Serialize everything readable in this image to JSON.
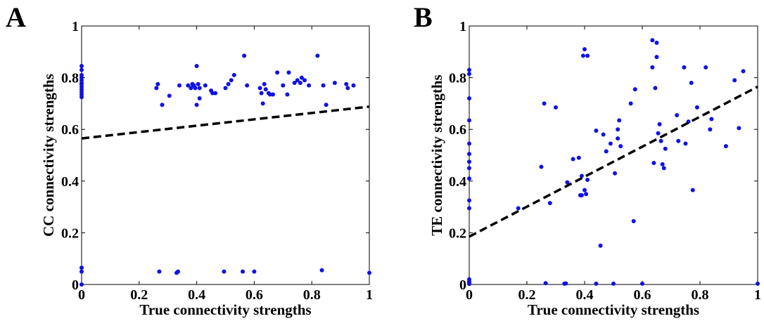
{
  "chart_data": [
    {
      "type": "scatter",
      "panel_label": "A",
      "xlabel": "True connectivity strengths",
      "ylabel": "CC connectivity strengths",
      "xlim": [
        0,
        1
      ],
      "ylim": [
        0,
        1
      ],
      "xticks": [
        "0",
        "0.2",
        "0.4",
        "0.6",
        "0.8",
        "1"
      ],
      "yticks": [
        "0",
        "0.2",
        "0.4",
        "0.6",
        "0.8",
        "1"
      ],
      "grid": false,
      "point_color": "#1010e8",
      "fit_line": {
        "style": "dashed",
        "color": "#000000",
        "x": [
          0,
          1
        ],
        "y": [
          0.565,
          0.688
        ]
      },
      "points": [
        [
          0,
          0.845
        ],
        [
          0,
          0.83
        ],
        [
          0,
          0.81
        ],
        [
          0,
          0.8
        ],
        [
          0,
          0.79
        ],
        [
          0,
          0.78
        ],
        [
          0,
          0.775
        ],
        [
          0,
          0.765
        ],
        [
          0,
          0.755
        ],
        [
          0,
          0.745
        ],
        [
          0,
          0.735
        ],
        [
          0,
          0.725
        ],
        [
          0,
          0.065
        ],
        [
          0,
          0.05
        ],
        [
          0,
          0.0
        ],
        [
          0.26,
          0.76
        ],
        [
          0.265,
          0.775
        ],
        [
          0.28,
          0.695
        ],
        [
          0.305,
          0.73
        ],
        [
          0.34,
          0.77
        ],
        [
          0.37,
          0.77
        ],
        [
          0.38,
          0.76
        ],
        [
          0.385,
          0.775
        ],
        [
          0.39,
          0.77
        ],
        [
          0.395,
          0.76
        ],
        [
          0.4,
          0.845
        ],
        [
          0.4,
          0.695
        ],
        [
          0.405,
          0.775
        ],
        [
          0.41,
          0.76
        ],
        [
          0.41,
          0.72
        ],
        [
          0.43,
          0.77
        ],
        [
          0.45,
          0.75
        ],
        [
          0.455,
          0.74
        ],
        [
          0.465,
          0.74
        ],
        [
          0.5,
          0.76
        ],
        [
          0.51,
          0.775
        ],
        [
          0.52,
          0.79
        ],
        [
          0.53,
          0.81
        ],
        [
          0.565,
          0.885
        ],
        [
          0.575,
          0.77
        ],
        [
          0.62,
          0.76
        ],
        [
          0.625,
          0.74
        ],
        [
          0.63,
          0.7
        ],
        [
          0.635,
          0.775
        ],
        [
          0.64,
          0.755
        ],
        [
          0.65,
          0.74
        ],
        [
          0.655,
          0.735
        ],
        [
          0.665,
          0.735
        ],
        [
          0.68,
          0.82
        ],
        [
          0.7,
          0.77
        ],
        [
          0.715,
          0.735
        ],
        [
          0.72,
          0.82
        ],
        [
          0.74,
          0.78
        ],
        [
          0.75,
          0.79
        ],
        [
          0.76,
          0.78
        ],
        [
          0.765,
          0.8
        ],
        [
          0.775,
          0.79
        ],
        [
          0.79,
          0.77
        ],
        [
          0.82,
          0.885
        ],
        [
          0.84,
          0.77
        ],
        [
          0.85,
          0.695
        ],
        [
          0.88,
          0.78
        ],
        [
          0.92,
          0.775
        ],
        [
          0.925,
          0.76
        ],
        [
          0.945,
          0.77
        ],
        [
          0.27,
          0.05
        ],
        [
          0.33,
          0.045
        ],
        [
          0.335,
          0.05
        ],
        [
          0.495,
          0.05
        ],
        [
          0.56,
          0.05
        ],
        [
          0.6,
          0.05
        ],
        [
          0.835,
          0.055
        ],
        [
          1.0,
          0.045
        ]
      ]
    },
    {
      "type": "scatter",
      "panel_label": "B",
      "xlabel": "True connectivity strengths",
      "ylabel": "TE connectivity strengths",
      "xlim": [
        0,
        1
      ],
      "ylim": [
        0,
        1
      ],
      "xticks": [
        "0",
        "0.2",
        "0.4",
        "0.6",
        "0.8",
        "1"
      ],
      "yticks": [
        "0",
        "0.2",
        "0.4",
        "0.6",
        "0.8",
        "1"
      ],
      "grid": false,
      "point_color": "#1010e8",
      "fit_line": {
        "style": "dashed",
        "color": "#000000",
        "x": [
          0,
          1
        ],
        "y": [
          0.185,
          0.765
        ]
      },
      "points": [
        [
          0,
          0.83
        ],
        [
          0,
          0.815
        ],
        [
          0,
          0.72
        ],
        [
          0,
          0.635
        ],
        [
          0,
          0.545
        ],
        [
          0,
          0.505
        ],
        [
          0,
          0.475
        ],
        [
          0,
          0.45
        ],
        [
          0,
          0.41
        ],
        [
          0,
          0.325
        ],
        [
          0,
          0.295
        ],
        [
          0,
          0.02
        ],
        [
          0,
          0.012
        ],
        [
          0,
          0.006
        ],
        [
          0,
          0.002
        ],
        [
          0.17,
          0.295
        ],
        [
          0.25,
          0.455
        ],
        [
          0.26,
          0.7
        ],
        [
          0.28,
          0.315
        ],
        [
          0.3,
          0.685
        ],
        [
          0.34,
          0.395
        ],
        [
          0.36,
          0.485
        ],
        [
          0.38,
          0.49
        ],
        [
          0.385,
          0.345
        ],
        [
          0.39,
          0.42
        ],
        [
          0.39,
          0.345
        ],
        [
          0.395,
          0.885
        ],
        [
          0.4,
          0.91
        ],
        [
          0.4,
          0.365
        ],
        [
          0.405,
          0.35
        ],
        [
          0.41,
          0.405
        ],
        [
          0.41,
          0.885
        ],
        [
          0.44,
          0.595
        ],
        [
          0.455,
          0.15
        ],
        [
          0.465,
          0.58
        ],
        [
          0.475,
          0.515
        ],
        [
          0.49,
          0.545
        ],
        [
          0.505,
          0.43
        ],
        [
          0.515,
          0.6
        ],
        [
          0.515,
          0.565
        ],
        [
          0.52,
          0.635
        ],
        [
          0.525,
          0.535
        ],
        [
          0.56,
          0.7
        ],
        [
          0.57,
          0.245
        ],
        [
          0.575,
          0.755
        ],
        [
          0.635,
          0.945
        ],
        [
          0.635,
          0.84
        ],
        [
          0.64,
          0.47
        ],
        [
          0.645,
          0.76
        ],
        [
          0.65,
          0.88
        ],
        [
          0.65,
          0.935
        ],
        [
          0.655,
          0.585
        ],
        [
          0.66,
          0.62
        ],
        [
          0.665,
          0.555
        ],
        [
          0.67,
          0.465
        ],
        [
          0.675,
          0.45
        ],
        [
          0.68,
          0.525
        ],
        [
          0.72,
          0.655
        ],
        [
          0.725,
          0.555
        ],
        [
          0.745,
          0.84
        ],
        [
          0.75,
          0.545
        ],
        [
          0.76,
          0.63
        ],
        [
          0.77,
          0.78
        ],
        [
          0.775,
          0.365
        ],
        [
          0.79,
          0.685
        ],
        [
          0.82,
          0.84
        ],
        [
          0.835,
          0.6
        ],
        [
          0.84,
          0.64
        ],
        [
          0.89,
          0.535
        ],
        [
          0.92,
          0.79
        ],
        [
          0.935,
          0.605
        ],
        [
          0.95,
          0.825
        ],
        [
          0.265,
          0.005
        ],
        [
          0.33,
          0.003
        ],
        [
          0.335,
          0.004
        ],
        [
          0.44,
          0.003
        ],
        [
          0.5,
          0.003
        ],
        [
          0.6,
          0.003
        ],
        [
          1.0,
          0.003
        ]
      ]
    }
  ]
}
